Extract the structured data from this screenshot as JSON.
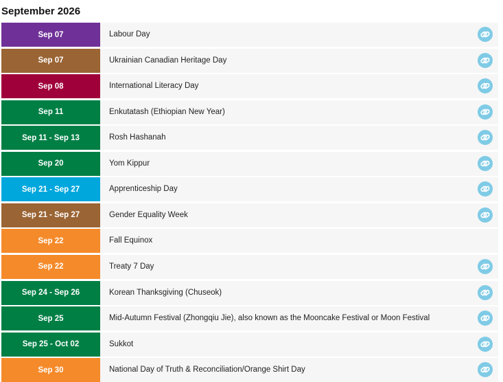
{
  "header": {
    "title": "September 2026"
  },
  "events": [
    {
      "date": "Sep 07",
      "name": "Labour Day",
      "color": "#6f3198",
      "link": true
    },
    {
      "date": "Sep 07",
      "name": "Ukrainian Canadian Heritage Day",
      "color": "#9a6434",
      "link": true
    },
    {
      "date": "Sep 08",
      "name": "International Literacy Day",
      "color": "#a0003a",
      "link": true
    },
    {
      "date": "Sep 11",
      "name": "Enkutatash (Ethiopian New Year)",
      "color": "#007f45",
      "link": true
    },
    {
      "date": "Sep 11 - Sep 13",
      "name": "Rosh Hashanah",
      "color": "#007f45",
      "link": true
    },
    {
      "date": "Sep 20",
      "name": "Yom Kippur",
      "color": "#007f45",
      "link": true
    },
    {
      "date": "Sep 21 - Sep 27",
      "name": "Apprenticeship Day",
      "color": "#00a7dd",
      "link": true
    },
    {
      "date": "Sep 21 - Sep 27",
      "name": "Gender Equality Week",
      "color": "#9a6434",
      "link": true
    },
    {
      "date": "Sep 22",
      "name": "Fall Equinox",
      "color": "#f58a2a",
      "link": false
    },
    {
      "date": "Sep 22",
      "name": "Treaty 7 Day",
      "color": "#f58a2a",
      "link": true
    },
    {
      "date": "Sep 24 - Sep 26",
      "name": "Korean Thanksgiving (Chuseok)",
      "color": "#007f45",
      "link": true
    },
    {
      "date": "Sep 25",
      "name": "Mid-Autumn Festival (Zhongqiu Jie), also known as the Mooncake Festival or Moon Festival",
      "color": "#007f45",
      "link": true
    },
    {
      "date": "Sep 25 - Oct 02",
      "name": "Sukkot",
      "color": "#007f45",
      "link": true
    },
    {
      "date": "Sep 30",
      "name": "National Day of Truth & Reconciliation/Orange Shirt Day",
      "color": "#f58a2a",
      "link": true
    }
  ]
}
